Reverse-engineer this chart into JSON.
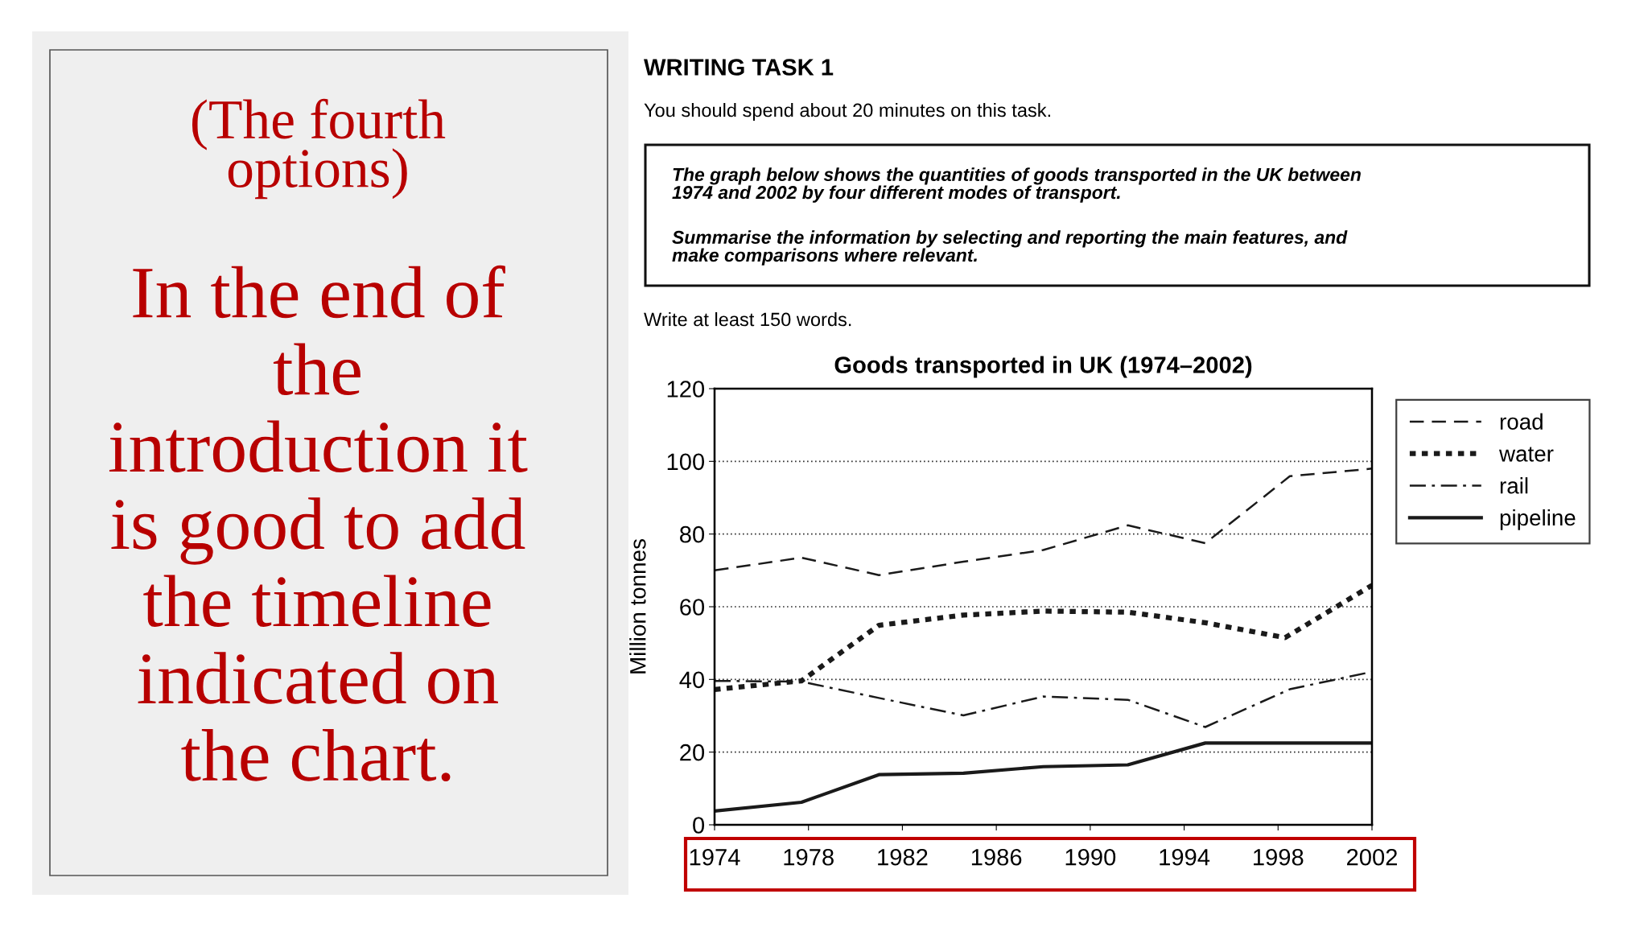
{
  "chart_data": {
    "type": "line",
    "title": "Goods transported in UK (1974–2002)",
    "ylabel": "Million tonnes",
    "annotations": [
      "WRITING TASK 1",
      "You should spend about 20 minutes on this task.",
      "The graph below shows the quantities of goods transported in the UK between\n1974 and 2002 by four different modes of transport.",
      "Summarise the information by selecting and reporting the main features, and\nmake comparisons where relevant.",
      "Write at least 150 words.",
      "(The fourth\noptions)",
      "In the end of\nthe\nintroduction it\nis good to add\nthe timeline\nindicated on\nthe chart."
    ],
    "xlim": [
      1974,
      2002
    ],
    "xticks": [
      1974,
      1978,
      1982,
      1986,
      1990,
      1994,
      1998,
      2002
    ],
    "ylim": [
      0,
      120
    ],
    "yticks": [
      0,
      20,
      40,
      60,
      80,
      100,
      120
    ],
    "grid": "y",
    "legend": "top right",
    "series": [
      {
        "name": "road",
        "color": "#1a1a1a",
        "line_style": "dashed",
        "x": [
          1974,
          1977.7,
          1981,
          1984.6,
          1988,
          1991.6,
          1994.9,
          1998.5,
          2002
        ],
        "values": [
          70,
          73.5,
          68.7,
          72.4,
          75.6,
          82.4,
          77.5,
          95.9,
          98
        ]
      },
      {
        "name": "water",
        "color": "#1a1a1a",
        "line_style": "dotted",
        "x": [
          1974,
          1977.7,
          1981,
          1984.6,
          1988,
          1991.6,
          1994.9,
          1998.3,
          2002
        ],
        "values": [
          37.2,
          39.6,
          54.9,
          57.7,
          58.8,
          58.5,
          55.6,
          51.5,
          65.9
        ]
      },
      {
        "name": "rail",
        "color": "#1a1a1a",
        "line_style": "dashdot",
        "x": [
          1974,
          1977.7,
          1981,
          1984.6,
          1988,
          1991.6,
          1994.9,
          1998.5,
          2002
        ],
        "values": [
          39.6,
          39.4,
          34.9,
          30.1,
          35.3,
          34.4,
          26.9,
          37.3,
          42.1
        ]
      },
      {
        "name": "pipeline",
        "color": "#1a1a1a",
        "line_style": "solid",
        "x": [
          1974,
          1977.7,
          1981,
          1984.6,
          1988,
          1991.6,
          1994.9,
          2002
        ],
        "values": [
          3.8,
          6.2,
          13.8,
          14.2,
          16,
          16.5,
          22.5,
          22.5
        ]
      }
    ]
  }
}
